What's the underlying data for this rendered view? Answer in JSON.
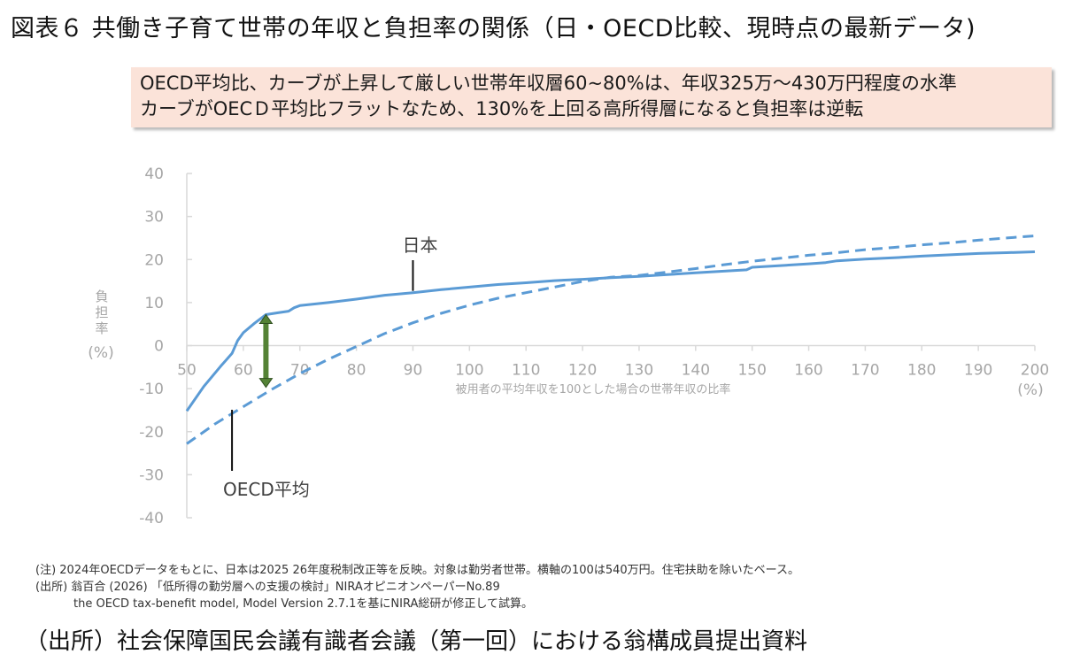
{
  "title": "図表６ 共働き子育て世帯の年収と負担率の関係（日・OECD比較、現時点の最新データ)",
  "callout": {
    "line1": "OECD平均比、カーブが上昇して厳しい世帯年収層60~80%は、年収325万～430万円程度の水準",
    "line2": "カーブがOECＤ平均比フラットなため、130%を上回る高所得層になると負担率は逆転",
    "background_color": "#fbe3d9"
  },
  "chart_data": {
    "type": "line",
    "title": "共働き子育て世帯の年収と負担率の関係（日・OECD比較、現時点の最新データ)",
    "xlabel": "被用者の平均年収を100とした場合の世帯年収の比率",
    "xlabel_unit": "(%)",
    "ylabel": "負担率",
    "ylabel_unit": "(%)",
    "xlim": [
      50,
      200
    ],
    "ylim": [
      -40,
      40
    ],
    "x_ticks": [
      50,
      60,
      70,
      80,
      90,
      100,
      110,
      120,
      130,
      140,
      150,
      160,
      170,
      180,
      190,
      200
    ],
    "y_ticks": [
      40,
      30,
      20,
      10,
      0,
      -10,
      -20,
      -30,
      -40
    ],
    "grid": false,
    "legend": "inline annotations",
    "series": [
      {
        "name": "日本",
        "style": "solid",
        "color": "#5b9bd5",
        "x": [
          50,
          53,
          56,
          58,
          59,
          60,
          62,
          64,
          66,
          68,
          69,
          70,
          75,
          80,
          85,
          90,
          95,
          100,
          105,
          110,
          115,
          120,
          125,
          130,
          135,
          140,
          145,
          149,
          150,
          155,
          160,
          163,
          165,
          170,
          175,
          180,
          185,
          190,
          195,
          200
        ],
        "y": [
          -15.2,
          -9.5,
          -4.8,
          -1.8,
          1.2,
          3.0,
          5.2,
          7.2,
          7.6,
          8.0,
          8.8,
          9.3,
          10.0,
          10.8,
          11.7,
          12.3,
          13.0,
          13.6,
          14.2,
          14.6,
          15.1,
          15.4,
          15.8,
          16.1,
          16.5,
          16.9,
          17.3,
          17.6,
          18.2,
          18.6,
          19.0,
          19.3,
          19.7,
          20.1,
          20.4,
          20.8,
          21.1,
          21.4,
          21.6,
          21.8
        ]
      },
      {
        "name": "OECD平均",
        "style": "dashed",
        "color": "#5b9bd5",
        "x": [
          50,
          55,
          60,
          65,
          70,
          75,
          80,
          85,
          90,
          95,
          100,
          105,
          110,
          115,
          120,
          125,
          130,
          135,
          140,
          145,
          150,
          155,
          160,
          165,
          170,
          175,
          180,
          185,
          190,
          195,
          200
        ],
        "y": [
          -22.8,
          -18.2,
          -14.2,
          -10.2,
          -6.5,
          -3.2,
          -0.2,
          2.8,
          5.3,
          7.5,
          9.4,
          11.0,
          12.3,
          13.6,
          14.9,
          15.9,
          16.3,
          17.1,
          17.9,
          18.8,
          19.6,
          20.3,
          21.0,
          21.6,
          22.3,
          22.8,
          23.4,
          23.9,
          24.5,
          25.0,
          25.5
        ]
      }
    ],
    "annotations": [
      {
        "text": "日本",
        "x": 90,
        "y": 12.3,
        "type": "label-with-leader"
      },
      {
        "text": "OECD平均",
        "x": 58,
        "y": -14.5,
        "type": "label-with-leader"
      },
      {
        "text": "gap-arrow",
        "x": 64,
        "y_from": 7.2,
        "y_to": -9.7,
        "color": "#548235",
        "type": "double-arrow"
      }
    ]
  },
  "axis": {
    "x_ticks": [
      "50",
      "60",
      "70",
      "80",
      "90",
      "100",
      "110",
      "120",
      "130",
      "140",
      "150",
      "160",
      "170",
      "180",
      "190",
      "200"
    ],
    "y_ticks": [
      "40",
      "30",
      "20",
      "10",
      "0",
      "-10",
      "-20",
      "-30",
      "-40"
    ],
    "x_title": "被用者の平均年収を100とした場合の世帯年収の比率",
    "x_unit": "(%)",
    "y_title_chars": [
      "負",
      "担",
      "率"
    ],
    "y_unit": "(%)"
  },
  "labels": {
    "japan": "日本",
    "oecd": "OECD平均"
  },
  "notes": {
    "note1": "(注) 2024年OECDデータをもとに、日本は2025 26年度税制改正等を反映。対象は勤労者世帯。横軸の100は540万円。住宅扶助を除いたベース。",
    "note2": "(出所) 翁百合 (2026) 「低所得の勤労層への支援の検討」NIRAオピニオンペーパーNo.89",
    "note3": "the OECD tax-benefit model, Model Version 2.7.1を基にNIRA総研が修正して試算。"
  },
  "source": "（出所）社会保障国民会議有識者会議（第一回）における翁構成員提出資料"
}
